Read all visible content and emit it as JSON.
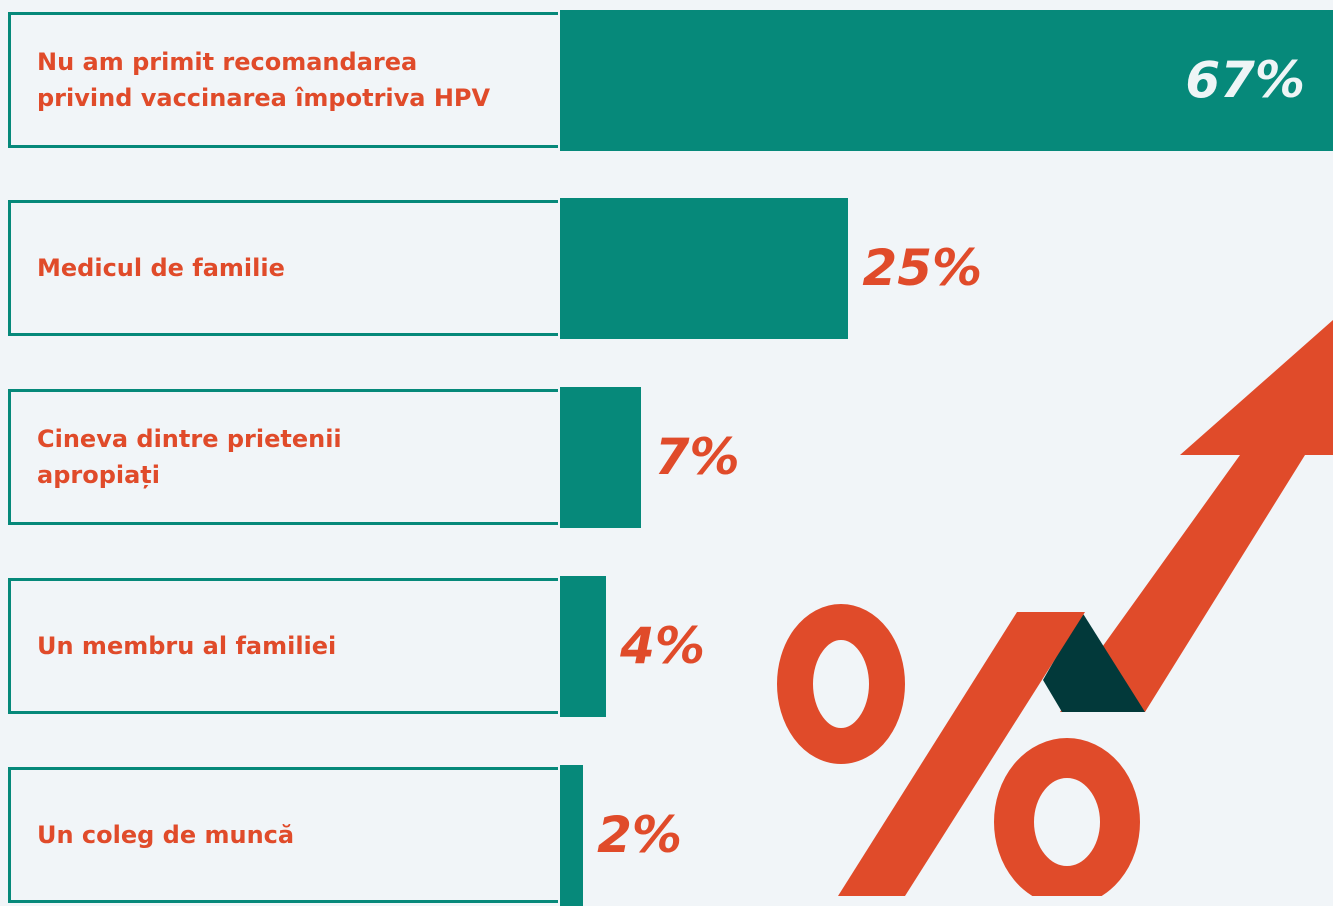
{
  "chart_data": {
    "type": "bar",
    "orientation": "horizontal",
    "categories": [
      "Nu am primit recomandarea\nprivind vaccinarea împotriva HPV",
      "Medicul de familie",
      "Cineva dintre prietenii\napropiați",
      "Un membru al familiei",
      "Un coleg de muncă"
    ],
    "values": [
      67,
      25,
      7,
      4,
      2
    ],
    "value_labels": [
      "67%",
      "25%",
      "7%",
      "4%",
      "2%"
    ],
    "color": "#06897a",
    "label_color": "#e04b2a"
  }
}
